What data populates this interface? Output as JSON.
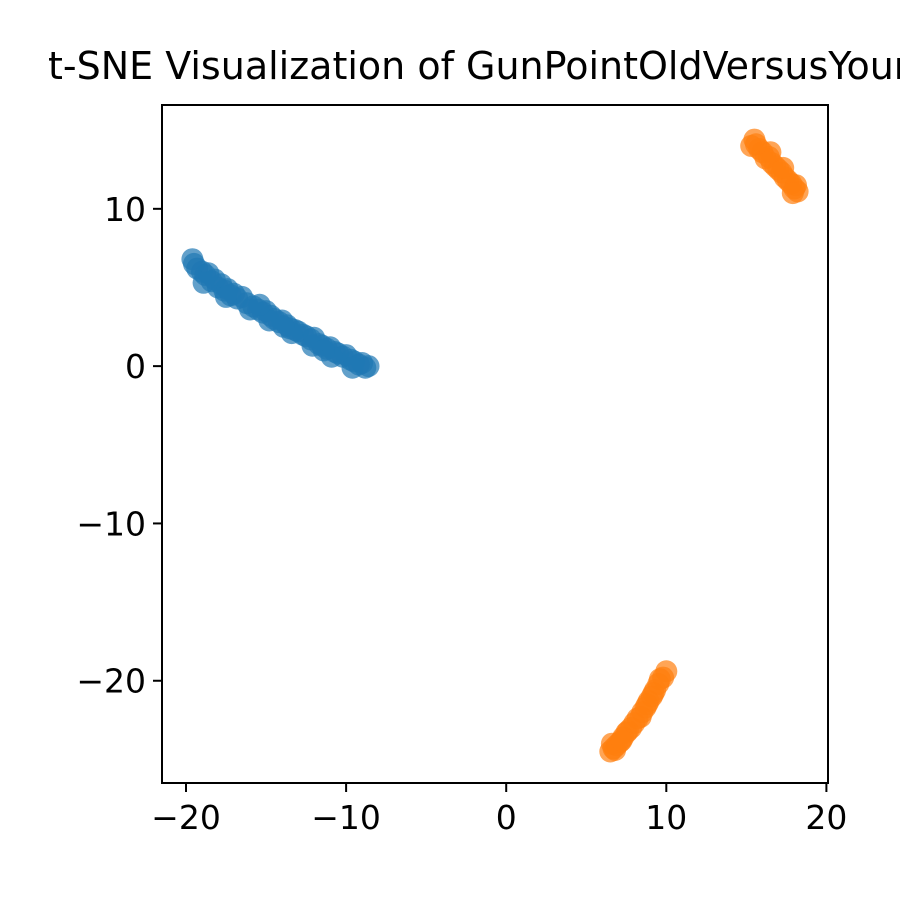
{
  "chart_data": {
    "type": "scatter",
    "title": "t-SNE Visualization of GunPointOldVersusYoung",
    "xlabel": "",
    "ylabel": "",
    "xlim": [
      -21.5,
      20.1
    ],
    "ylim": [
      -26.5,
      16.6
    ],
    "x_ticks": [
      -20,
      -10,
      0,
      10,
      20
    ],
    "y_ticks": [
      -20,
      -10,
      0,
      10
    ],
    "x_tick_labels": [
      "−20",
      "−10",
      "0",
      "10",
      "20"
    ],
    "y_tick_labels": [
      "−20",
      "−10",
      "0",
      "10"
    ],
    "grid": false,
    "legend": "none",
    "series": [
      {
        "color": "#1f77b4",
        "points": [
          [
            -19.6,
            6.8
          ],
          [
            -19.3,
            6.2
          ],
          [
            -19.0,
            6.0
          ],
          [
            -18.8,
            5.8
          ],
          [
            -18.6,
            5.9
          ],
          [
            -18.4,
            5.4
          ],
          [
            -18.2,
            5.5
          ],
          [
            -18.0,
            5.0
          ],
          [
            -17.8,
            5.2
          ],
          [
            -17.6,
            4.8
          ],
          [
            -17.4,
            4.9
          ],
          [
            -17.2,
            4.5
          ],
          [
            -17.0,
            4.6
          ],
          [
            -16.8,
            4.3
          ],
          [
            -16.5,
            4.4
          ],
          [
            -16.2,
            4.0
          ],
          [
            -15.8,
            3.8
          ],
          [
            -15.5,
            3.6
          ],
          [
            -15.2,
            3.4
          ],
          [
            -15.0,
            3.5
          ],
          [
            -14.7,
            3.2
          ],
          [
            -14.5,
            3.0
          ],
          [
            -14.2,
            2.8
          ],
          [
            -14.0,
            2.9
          ],
          [
            -13.7,
            2.6
          ],
          [
            -13.5,
            2.4
          ],
          [
            -13.2,
            2.3
          ],
          [
            -13.0,
            2.2
          ],
          [
            -12.7,
            2.0
          ],
          [
            -12.5,
            1.9
          ],
          [
            -12.2,
            1.7
          ],
          [
            -12.0,
            1.8
          ],
          [
            -11.7,
            1.4
          ],
          [
            -11.5,
            1.3
          ],
          [
            -11.2,
            1.1
          ],
          [
            -11.0,
            1.2
          ],
          [
            -10.7,
            0.9
          ],
          [
            -10.5,
            0.8
          ],
          [
            -10.2,
            0.6
          ],
          [
            -10.0,
            0.7
          ],
          [
            -9.7,
            0.4
          ],
          [
            -9.5,
            0.3
          ],
          [
            -9.2,
            0.1
          ],
          [
            -9.0,
            0.2
          ],
          [
            -8.8,
            -0.1
          ],
          [
            -8.6,
            0.0
          ],
          [
            -18.9,
            5.3
          ],
          [
            -17.5,
            4.4
          ],
          [
            -16.0,
            3.6
          ],
          [
            -14.8,
            2.9
          ],
          [
            -13.4,
            2.1
          ],
          [
            -12.1,
            1.3
          ],
          [
            -10.9,
            0.6
          ],
          [
            -9.6,
            -0.1
          ],
          [
            -15.4,
            3.9
          ],
          [
            -13.9,
            2.5
          ],
          [
            -11.4,
            1.0
          ],
          [
            -19.5,
            6.5
          ]
        ]
      },
      {
        "color": "#ff7f0e",
        "points": [
          [
            15.5,
            14.4
          ],
          [
            15.3,
            14.0
          ],
          [
            15.8,
            13.8
          ],
          [
            16.0,
            13.6
          ],
          [
            16.2,
            13.2
          ],
          [
            16.4,
            13.3
          ],
          [
            16.6,
            12.9
          ],
          [
            16.8,
            12.7
          ],
          [
            17.0,
            12.5
          ],
          [
            17.2,
            12.3
          ],
          [
            17.4,
            12.0
          ],
          [
            17.6,
            11.8
          ],
          [
            17.8,
            11.6
          ],
          [
            18.0,
            11.3
          ],
          [
            18.2,
            11.1
          ],
          [
            18.1,
            11.5
          ],
          [
            17.3,
            12.6
          ],
          [
            16.5,
            13.6
          ],
          [
            15.6,
            14.1
          ],
          [
            17.9,
            11.0
          ],
          [
            10.0,
            -19.4
          ],
          [
            9.8,
            -19.8
          ],
          [
            9.5,
            -20.2
          ],
          [
            9.3,
            -20.6
          ],
          [
            9.1,
            -21.0
          ],
          [
            8.9,
            -21.3
          ],
          [
            8.7,
            -21.7
          ],
          [
            8.5,
            -22.0
          ],
          [
            8.2,
            -22.4
          ],
          [
            8.0,
            -22.7
          ],
          [
            7.8,
            -23.0
          ],
          [
            7.5,
            -23.3
          ],
          [
            7.3,
            -23.6
          ],
          [
            7.1,
            -23.9
          ],
          [
            6.9,
            -24.1
          ],
          [
            6.7,
            -24.3
          ],
          [
            6.5,
            -24.5
          ],
          [
            9.6,
            -19.9
          ],
          [
            8.8,
            -21.5
          ],
          [
            7.6,
            -23.2
          ],
          [
            6.8,
            -24.4
          ],
          [
            9.2,
            -20.8
          ],
          [
            8.4,
            -22.3
          ],
          [
            7.2,
            -23.8
          ],
          [
            6.6,
            -24.0
          ]
        ]
      }
    ]
  }
}
